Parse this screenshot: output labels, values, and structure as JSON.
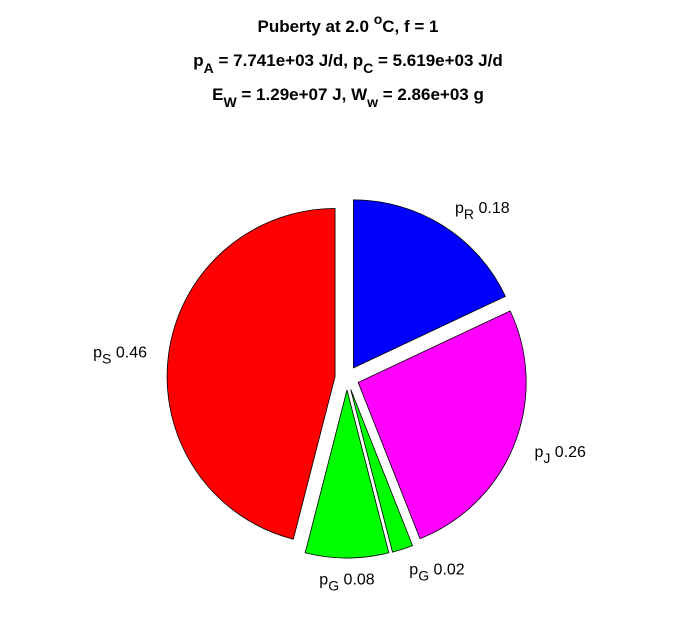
{
  "chart_data": {
    "type": "pie",
    "title": [
      [
        {
          "text": "Puberty at 2.0 "
        },
        {
          "text": "o",
          "shift": "super"
        },
        {
          "text": "C, f = 1"
        }
      ],
      [
        {
          "text": "p"
        },
        {
          "text": "A",
          "shift": "sub"
        },
        {
          "text": " = 7.741e+03 J/d,  p"
        },
        {
          "text": "C",
          "shift": "sub"
        },
        {
          "text": " = 5.619e+03 J/d"
        }
      ],
      [
        {
          "text": "E"
        },
        {
          "text": "W",
          "shift": "sub"
        },
        {
          "text": " = 1.29e+07 J, W"
        },
        {
          "text": "w",
          "shift": "sub"
        },
        {
          "text": " = 2.86e+03 g"
        }
      ]
    ],
    "label_prefix": "p",
    "categories": [
      "R",
      "J",
      "G",
      "G",
      "S"
    ],
    "values": [
      0.18,
      0.26,
      0.02,
      0.08,
      0.46
    ],
    "colors": [
      "#0000ff",
      "#ff00ff",
      "#00ff00",
      "#00ff00",
      "#ff0000"
    ],
    "start_angle": 90,
    "direction": "clockwise",
    "exploded": true
  }
}
